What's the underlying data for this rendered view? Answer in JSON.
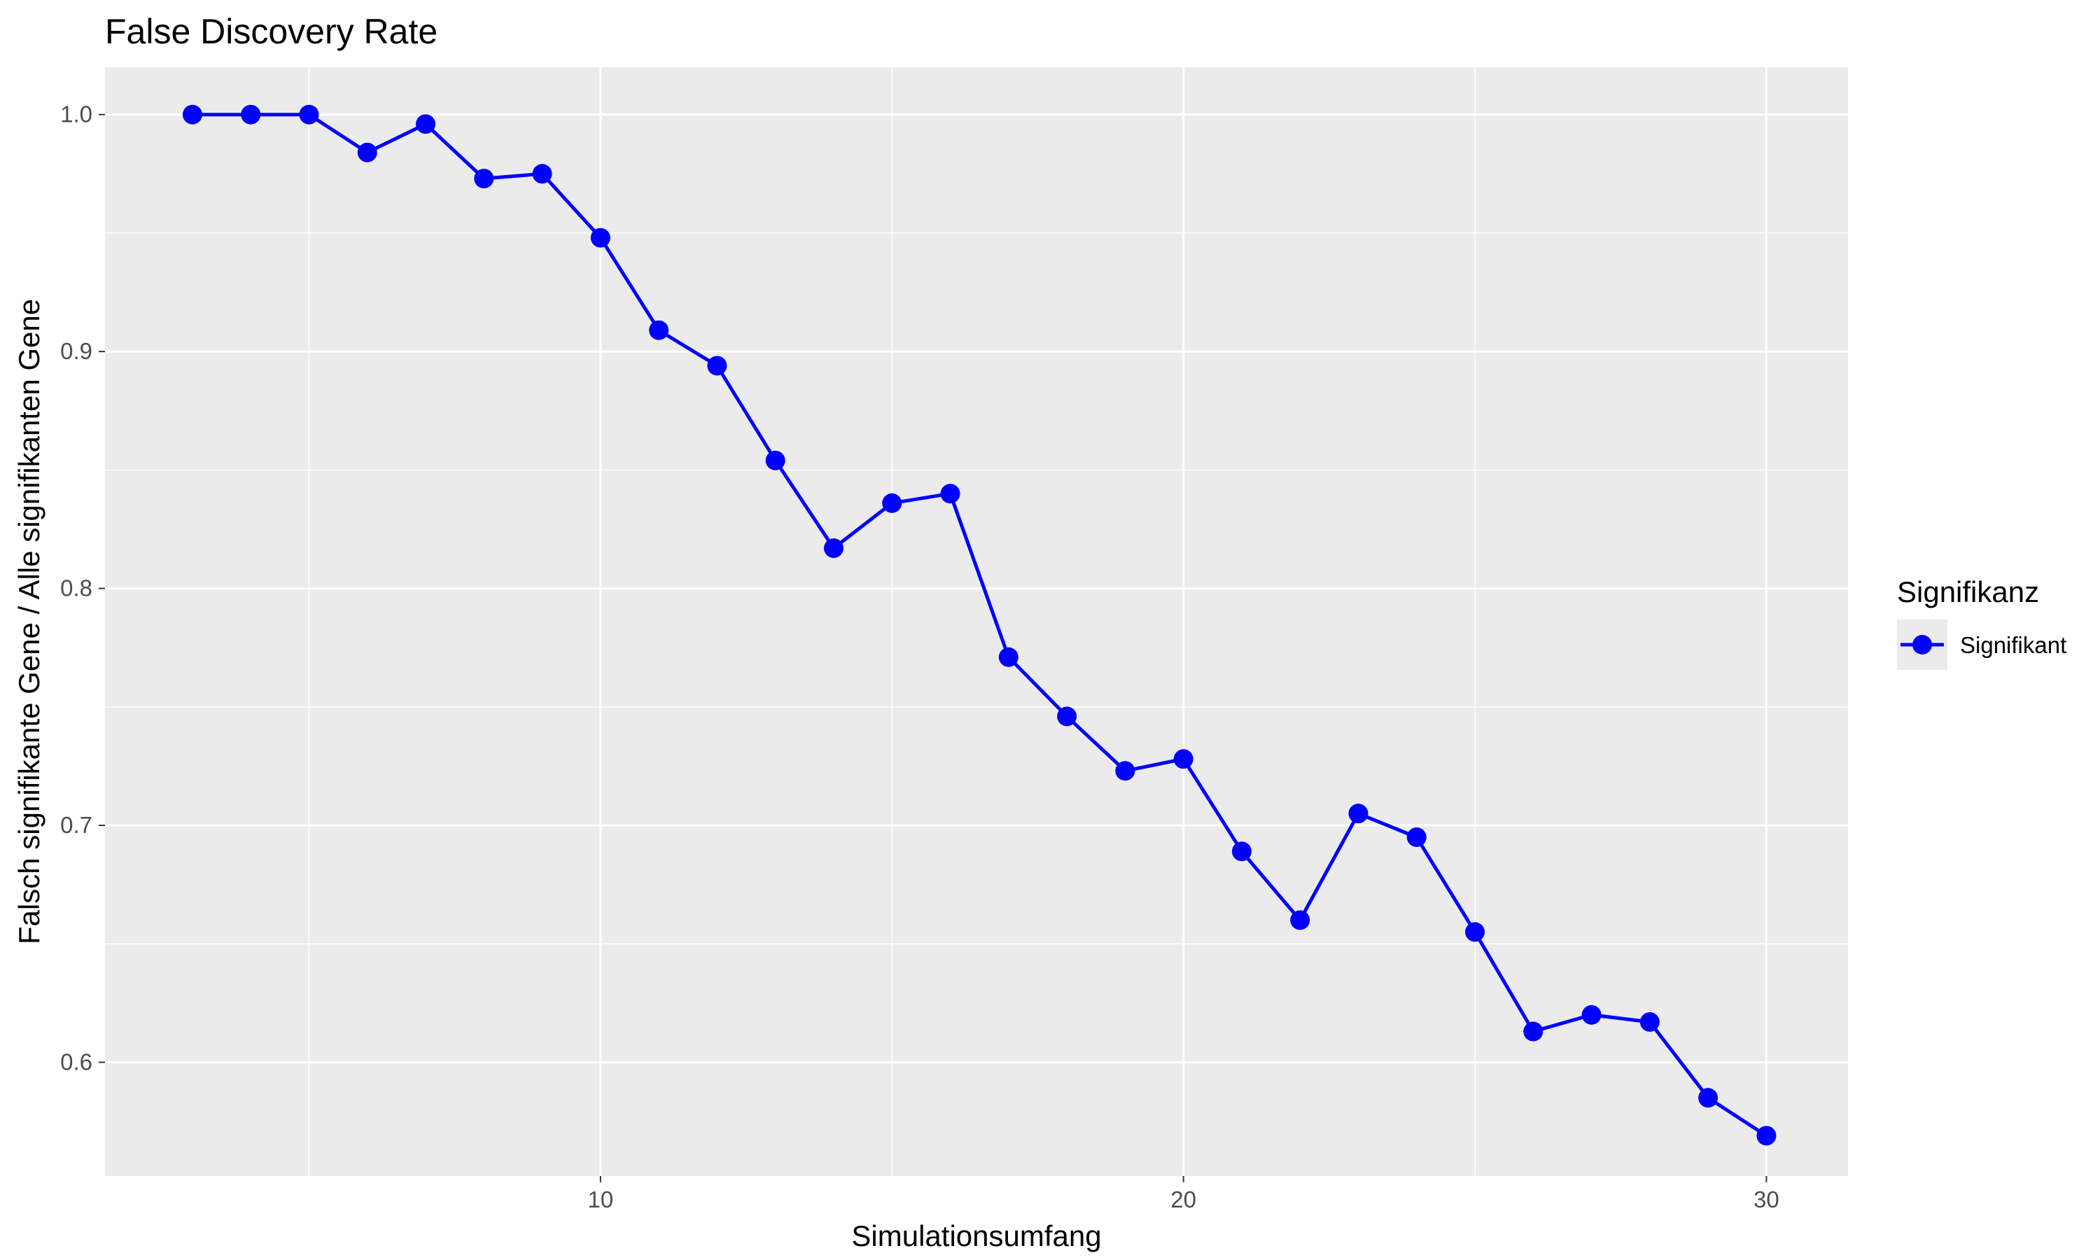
{
  "chart_data": {
    "type": "line",
    "title": "False Discovery Rate",
    "xlabel": "Simulationsumfang",
    "ylabel": "Falsch signifikante Gene / Alle signifikanten Gene",
    "xlim": [
      1.5,
      31.4
    ],
    "ylim": [
      0.552,
      1.02
    ],
    "x_ticks": [
      10,
      20,
      30
    ],
    "y_ticks": [
      0.6,
      0.7,
      0.8,
      0.9,
      1.0
    ],
    "x_tick_labels": [
      "10",
      "20",
      "30"
    ],
    "y_tick_labels": [
      "0.6",
      "0.7",
      "0.8",
      "0.9",
      "1.0"
    ],
    "grid": true,
    "legend": {
      "title": "Signifikanz",
      "position": "right"
    },
    "x": [
      3,
      4,
      5,
      6,
      7,
      8,
      9,
      10,
      11,
      12,
      13,
      14,
      15,
      16,
      17,
      18,
      19,
      20,
      21,
      22,
      23,
      24,
      25,
      26,
      27,
      28,
      29,
      30
    ],
    "series": [
      {
        "name": "Signifikant",
        "color": "#0000ff",
        "values": [
          1.0,
          1.0,
          1.0,
          0.984,
          0.996,
          0.973,
          0.975,
          0.948,
          0.909,
          0.894,
          0.854,
          0.817,
          0.836,
          0.84,
          0.771,
          0.746,
          0.723,
          0.728,
          0.689,
          0.66,
          0.705,
          0.695,
          0.655,
          0.613,
          0.62,
          0.617,
          0.585,
          0.569
        ]
      }
    ]
  },
  "colors": {
    "panel_bg": "#ebebeb",
    "grid": "#ffffff",
    "series": "#0000ff",
    "tick_text": "#4d4d4d"
  }
}
